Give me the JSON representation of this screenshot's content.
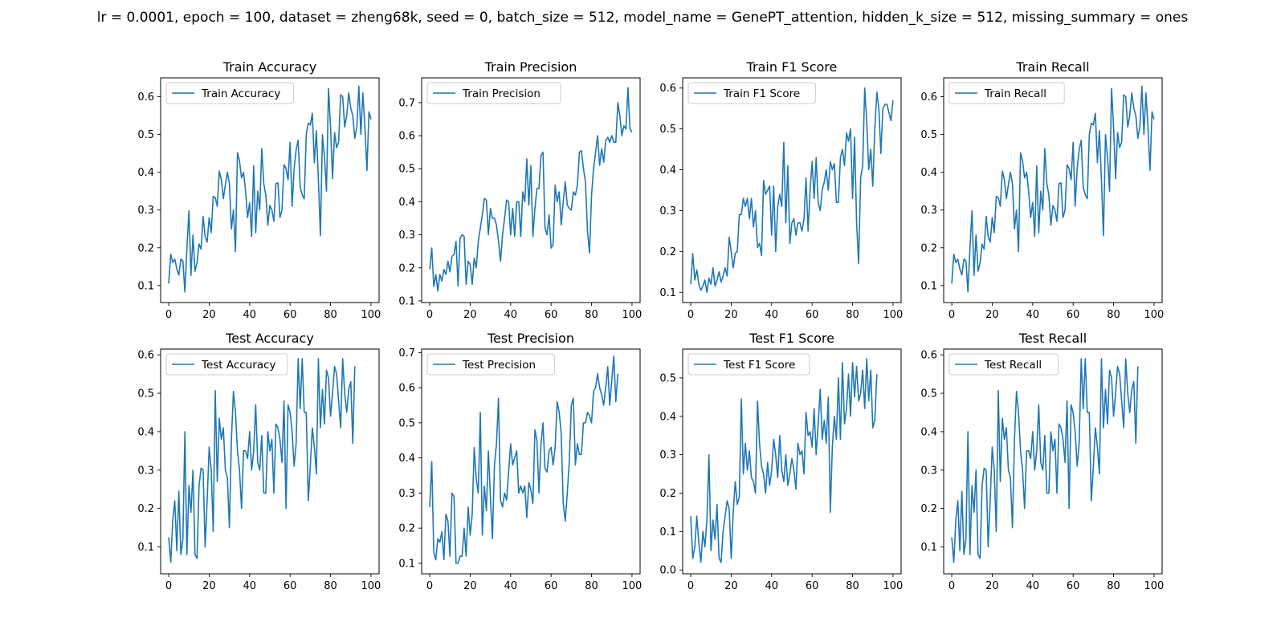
{
  "figure_title": "lr = 0.0001, epoch = 100, dataset = zheng68k, seed = 0, batch_size = 512, model_name = GenePT_attention, hidden_k_size = 512, missing_summary = ones",
  "line_color": "#1f77b4",
  "chart_data": [
    {
      "type": "line",
      "title": "Train Accuracy",
      "legend": [
        "Train Accuracy"
      ],
      "legend_position": "upper-left",
      "xlabel": "",
      "ylabel": "",
      "xlim": [
        -4,
        104
      ],
      "ylim": [
        0.055,
        0.65
      ],
      "xticks": [
        0,
        20,
        40,
        60,
        80,
        100
      ],
      "yticks": [
        0.1,
        0.2,
        0.3,
        0.4,
        0.5,
        0.6
      ],
      "x_start": 0,
      "x_step": 1,
      "values": [
        0.105,
        0.183,
        0.161,
        0.17,
        0.144,
        0.128,
        0.17,
        0.165,
        0.083,
        0.2,
        0.298,
        0.127,
        0.234,
        0.138,
        0.16,
        0.21,
        0.196,
        0.283,
        0.23,
        0.215,
        0.28,
        0.24,
        0.336,
        0.333,
        0.31,
        0.403,
        0.38,
        0.33,
        0.367,
        0.4,
        0.37,
        0.25,
        0.3,
        0.19,
        0.452,
        0.43,
        0.385,
        0.4,
        0.35,
        0.28,
        0.32,
        0.23,
        0.417,
        0.24,
        0.35,
        0.3,
        0.463,
        0.37,
        0.34,
        0.26,
        0.312,
        0.3,
        0.27,
        0.37,
        0.372,
        0.28,
        0.3,
        0.42,
        0.41,
        0.38,
        0.479,
        0.31,
        0.41,
        0.46,
        0.485,
        0.36,
        0.34,
        0.33,
        0.5,
        0.53,
        0.525,
        0.556,
        0.425,
        0.51,
        0.38,
        0.232,
        0.5,
        0.44,
        0.35,
        0.622,
        0.52,
        0.383,
        0.505,
        0.465,
        0.48,
        0.605,
        0.6,
        0.52,
        0.55,
        0.61,
        0.57,
        0.55,
        0.49,
        0.52,
        0.628,
        0.5,
        0.61,
        0.52,
        0.405,
        0.56,
        0.54
      ]
    },
    {
      "type": "line",
      "title": "Train Precision",
      "legend": [
        "Train Precision"
      ],
      "legend_position": "upper-left",
      "xlabel": "",
      "ylabel": "",
      "xlim": [
        -4,
        104
      ],
      "ylim": [
        0.095,
        0.775
      ],
      "xticks": [
        0,
        20,
        40,
        60,
        80,
        100
      ],
      "yticks": [
        0.1,
        0.2,
        0.3,
        0.4,
        0.5,
        0.6,
        0.7
      ],
      "x_start": 0,
      "x_step": 1,
      "values": [
        0.196,
        0.26,
        0.143,
        0.18,
        0.13,
        0.18,
        0.16,
        0.195,
        0.18,
        0.22,
        0.188,
        0.235,
        0.24,
        0.28,
        0.145,
        0.29,
        0.3,
        0.295,
        0.15,
        0.22,
        0.21,
        0.15,
        0.23,
        0.2,
        0.28,
        0.32,
        0.36,
        0.41,
        0.405,
        0.3,
        0.38,
        0.35,
        0.35,
        0.33,
        0.28,
        0.22,
        0.3,
        0.35,
        0.405,
        0.4,
        0.3,
        0.38,
        0.295,
        0.4,
        0.4,
        0.295,
        0.43,
        0.4,
        0.53,
        0.39,
        0.51,
        0.295,
        0.38,
        0.44,
        0.44,
        0.54,
        0.55,
        0.32,
        0.3,
        0.36,
        0.26,
        0.27,
        0.45,
        0.4,
        0.43,
        0.33,
        0.4,
        0.46,
        0.39,
        0.38,
        0.375,
        0.43,
        0.42,
        0.45,
        0.55,
        0.555,
        0.5,
        0.46,
        0.31,
        0.245,
        0.42,
        0.5,
        0.55,
        0.6,
        0.51,
        0.56,
        0.52,
        0.585,
        0.595,
        0.58,
        0.6,
        0.58,
        0.58,
        0.7,
        0.66,
        0.6,
        0.63,
        0.62,
        0.745,
        0.62,
        0.61
      ]
    },
    {
      "type": "line",
      "title": "Train F1 Score",
      "legend": [
        "Train F1 Score"
      ],
      "legend_position": "upper-left",
      "xlabel": "",
      "ylabel": "",
      "xlim": [
        -4,
        104
      ],
      "ylim": [
        0.075,
        0.625
      ],
      "xticks": [
        0,
        20,
        40,
        60,
        80,
        100
      ],
      "yticks": [
        0.1,
        0.2,
        0.3,
        0.4,
        0.5,
        0.6
      ],
      "x_start": 0,
      "x_step": 1,
      "values": [
        0.12,
        0.195,
        0.13,
        0.155,
        0.12,
        0.105,
        0.115,
        0.13,
        0.1,
        0.135,
        0.12,
        0.16,
        0.115,
        0.13,
        0.15,
        0.125,
        0.14,
        0.16,
        0.14,
        0.235,
        0.2,
        0.16,
        0.195,
        0.2,
        0.29,
        0.29,
        0.33,
        0.31,
        0.33,
        0.28,
        0.33,
        0.26,
        0.3,
        0.21,
        0.22,
        0.19,
        0.374,
        0.34,
        0.35,
        0.36,
        0.24,
        0.36,
        0.2,
        0.31,
        0.34,
        0.31,
        0.467,
        0.27,
        0.41,
        0.22,
        0.27,
        0.28,
        0.24,
        0.27,
        0.27,
        0.25,
        0.28,
        0.38,
        0.25,
        0.35,
        0.42,
        0.33,
        0.43,
        0.32,
        0.3,
        0.35,
        0.37,
        0.4,
        0.35,
        0.42,
        0.4,
        0.415,
        0.32,
        0.32,
        0.43,
        0.45,
        0.41,
        0.49,
        0.47,
        0.5,
        0.33,
        0.48,
        0.27,
        0.17,
        0.38,
        0.41,
        0.6,
        0.52,
        0.4,
        0.45,
        0.36,
        0.5,
        0.59,
        0.55,
        0.44,
        0.55,
        0.56,
        0.56,
        0.54,
        0.52,
        0.57
      ]
    },
    {
      "type": "line",
      "title": "Train Recall",
      "legend": [
        "Train Recall"
      ],
      "legend_position": "upper-left",
      "xlabel": "",
      "ylabel": "",
      "xlim": [
        -4,
        104
      ],
      "ylim": [
        0.055,
        0.65
      ],
      "xticks": [
        0,
        20,
        40,
        60,
        80,
        100
      ],
      "yticks": [
        0.1,
        0.2,
        0.3,
        0.4,
        0.5,
        0.6
      ],
      "x_start": 0,
      "x_step": 1,
      "values": [
        0.105,
        0.183,
        0.161,
        0.17,
        0.144,
        0.128,
        0.17,
        0.165,
        0.083,
        0.2,
        0.298,
        0.127,
        0.234,
        0.138,
        0.16,
        0.21,
        0.196,
        0.283,
        0.23,
        0.215,
        0.28,
        0.24,
        0.336,
        0.333,
        0.31,
        0.403,
        0.38,
        0.33,
        0.367,
        0.4,
        0.37,
        0.25,
        0.3,
        0.19,
        0.452,
        0.43,
        0.385,
        0.4,
        0.35,
        0.28,
        0.32,
        0.23,
        0.417,
        0.24,
        0.35,
        0.3,
        0.463,
        0.37,
        0.34,
        0.26,
        0.312,
        0.3,
        0.27,
        0.37,
        0.372,
        0.28,
        0.3,
        0.42,
        0.41,
        0.38,
        0.479,
        0.31,
        0.41,
        0.46,
        0.485,
        0.36,
        0.34,
        0.33,
        0.5,
        0.53,
        0.525,
        0.556,
        0.425,
        0.51,
        0.38,
        0.232,
        0.5,
        0.44,
        0.35,
        0.622,
        0.52,
        0.383,
        0.505,
        0.465,
        0.48,
        0.605,
        0.6,
        0.52,
        0.55,
        0.61,
        0.57,
        0.55,
        0.49,
        0.52,
        0.628,
        0.5,
        0.61,
        0.52,
        0.405,
        0.56,
        0.54
      ]
    },
    {
      "type": "line",
      "title": "Test Accuracy",
      "legend": [
        "Test Accuracy"
      ],
      "legend_position": "upper-left",
      "xlabel": "",
      "ylabel": "",
      "xlim": [
        -4,
        104
      ],
      "ylim": [
        0.03,
        0.615
      ],
      "xticks": [
        0,
        20,
        40,
        60,
        80,
        100
      ],
      "yticks": [
        0.1,
        0.2,
        0.3,
        0.4,
        0.5,
        0.6
      ],
      "x_start": 0,
      "x_step": 1,
      "values": [
        0.125,
        0.06,
        0.17,
        0.22,
        0.09,
        0.245,
        0.08,
        0.12,
        0.4,
        0.08,
        0.26,
        0.19,
        0.3,
        0.08,
        0.07,
        0.26,
        0.305,
        0.3,
        0.1,
        0.22,
        0.36,
        0.3,
        0.14,
        0.507,
        0.27,
        0.435,
        0.38,
        0.41,
        0.3,
        0.28,
        0.15,
        0.38,
        0.505,
        0.45,
        0.35,
        0.3,
        0.2,
        0.35,
        0.35,
        0.33,
        0.4,
        0.3,
        0.35,
        0.47,
        0.32,
        0.3,
        0.39,
        0.24,
        0.24,
        0.4,
        0.35,
        0.38,
        0.24,
        0.42,
        0.41,
        0.38,
        0.32,
        0.48,
        0.2,
        0.47,
        0.45,
        0.4,
        0.31,
        0.37,
        0.59,
        0.46,
        0.59,
        0.45,
        0.45,
        0.22,
        0.31,
        0.41,
        0.36,
        0.29,
        0.59,
        0.41,
        0.51,
        0.42,
        0.56,
        0.54,
        0.44,
        0.5,
        0.57,
        0.55,
        0.48,
        0.41,
        0.59,
        0.5,
        0.45,
        0.51,
        0.53,
        0.37,
        0.57
      ]
    },
    {
      "type": "line",
      "title": "Test Precision",
      "legend": [
        "Test Precision"
      ],
      "legend_position": "upper-left",
      "xlabel": "",
      "ylabel": "",
      "xlim": [
        -4,
        104
      ],
      "ylim": [
        0.07,
        0.71
      ],
      "xticks": [
        0,
        20,
        40,
        60,
        80,
        100
      ],
      "yticks": [
        0.1,
        0.2,
        0.3,
        0.4,
        0.5,
        0.6,
        0.7
      ],
      "x_start": 0,
      "x_step": 1,
      "values": [
        0.26,
        0.39,
        0.13,
        0.11,
        0.17,
        0.16,
        0.19,
        0.11,
        0.24,
        0.22,
        0.12,
        0.3,
        0.29,
        0.1,
        0.1,
        0.12,
        0.12,
        0.2,
        0.12,
        0.26,
        0.18,
        0.24,
        0.43,
        0.34,
        0.3,
        0.53,
        0.18,
        0.32,
        0.25,
        0.42,
        0.29,
        0.17,
        0.38,
        0.44,
        0.57,
        0.28,
        0.26,
        0.3,
        0.28,
        0.36,
        0.44,
        0.38,
        0.4,
        0.42,
        0.3,
        0.32,
        0.3,
        0.32,
        0.23,
        0.33,
        0.31,
        0.27,
        0.48,
        0.45,
        0.3,
        0.44,
        0.5,
        0.37,
        0.36,
        0.42,
        0.43,
        0.38,
        0.43,
        0.56,
        0.53,
        0.47,
        0.27,
        0.22,
        0.3,
        0.39,
        0.55,
        0.57,
        0.38,
        0.44,
        0.41,
        0.41,
        0.5,
        0.5,
        0.53,
        0.52,
        0.5,
        0.59,
        0.6,
        0.64,
        0.6,
        0.58,
        0.55,
        0.6,
        0.66,
        0.55,
        0.62,
        0.69,
        0.56,
        0.64
      ]
    },
    {
      "type": "line",
      "title": "Test F1 Score",
      "legend": [
        "Test F1 Score"
      ],
      "legend_position": "upper-left",
      "xlabel": "",
      "ylabel": "",
      "xlim": [
        -4,
        104
      ],
      "ylim": [
        -0.01,
        0.575
      ],
      "xticks": [
        0,
        20,
        40,
        60,
        80,
        100
      ],
      "yticks": [
        0.0,
        0.1,
        0.2,
        0.3,
        0.4,
        0.5
      ],
      "x_start": 0,
      "x_step": 1,
      "values": [
        0.14,
        0.03,
        0.06,
        0.14,
        0.07,
        0.02,
        0.1,
        0.06,
        0.13,
        0.3,
        0.05,
        0.13,
        0.08,
        0.17,
        0.03,
        0.02,
        0.1,
        0.14,
        0.18,
        0.16,
        0.03,
        0.15,
        0.23,
        0.17,
        0.19,
        0.445,
        0.25,
        0.33,
        0.26,
        0.31,
        0.24,
        0.23,
        0.2,
        0.44,
        0.33,
        0.27,
        0.25,
        0.2,
        0.28,
        0.22,
        0.26,
        0.34,
        0.3,
        0.24,
        0.35,
        0.26,
        0.23,
        0.3,
        0.22,
        0.25,
        0.29,
        0.26,
        0.21,
        0.33,
        0.3,
        0.31,
        0.25,
        0.41,
        0.35,
        0.36,
        0.32,
        0.42,
        0.3,
        0.38,
        0.47,
        0.34,
        0.39,
        0.33,
        0.45,
        0.15,
        0.32,
        0.4,
        0.34,
        0.5,
        0.34,
        0.54,
        0.38,
        0.42,
        0.51,
        0.4,
        0.54,
        0.45,
        0.53,
        0.44,
        0.46,
        0.52,
        0.42,
        0.55,
        0.44,
        0.52,
        0.37,
        0.39,
        0.51
      ]
    },
    {
      "type": "line",
      "title": "Test Recall",
      "legend": [
        "Test Recall"
      ],
      "legend_position": "upper-left",
      "xlabel": "",
      "ylabel": "",
      "xlim": [
        -4,
        104
      ],
      "ylim": [
        0.03,
        0.615
      ],
      "xticks": [
        0,
        20,
        40,
        60,
        80,
        100
      ],
      "yticks": [
        0.1,
        0.2,
        0.3,
        0.4,
        0.5,
        0.6
      ],
      "x_start": 0,
      "x_step": 1,
      "values": [
        0.125,
        0.06,
        0.17,
        0.22,
        0.09,
        0.245,
        0.08,
        0.12,
        0.4,
        0.08,
        0.26,
        0.19,
        0.3,
        0.08,
        0.07,
        0.26,
        0.305,
        0.3,
        0.1,
        0.22,
        0.36,
        0.3,
        0.14,
        0.507,
        0.27,
        0.435,
        0.38,
        0.41,
        0.3,
        0.28,
        0.15,
        0.38,
        0.505,
        0.45,
        0.35,
        0.3,
        0.2,
        0.35,
        0.35,
        0.33,
        0.4,
        0.3,
        0.35,
        0.47,
        0.32,
        0.3,
        0.39,
        0.24,
        0.24,
        0.4,
        0.35,
        0.38,
        0.24,
        0.42,
        0.41,
        0.38,
        0.32,
        0.48,
        0.2,
        0.47,
        0.45,
        0.4,
        0.31,
        0.37,
        0.59,
        0.46,
        0.59,
        0.45,
        0.45,
        0.22,
        0.31,
        0.41,
        0.36,
        0.29,
        0.59,
        0.41,
        0.51,
        0.42,
        0.56,
        0.54,
        0.44,
        0.5,
        0.57,
        0.55,
        0.48,
        0.41,
        0.59,
        0.5,
        0.45,
        0.51,
        0.53,
        0.37,
        0.57
      ]
    }
  ]
}
